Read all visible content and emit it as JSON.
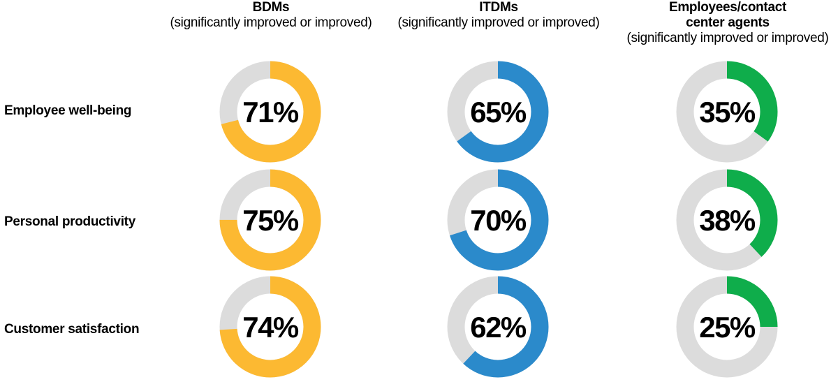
{
  "chart_data": {
    "type": "donut-grid",
    "columns": [
      {
        "title": "BDMs",
        "subtitle": "(significantly improved or improved)",
        "color": "#fcb932"
      },
      {
        "title": "ITDMs",
        "subtitle": "(significantly improved or improved)",
        "color": "#2b8acb"
      },
      {
        "title": "Employees/contact\ncenter agents",
        "subtitle": "(significantly improved or improved)",
        "color": "#0fad4b"
      }
    ],
    "rows": [
      {
        "label": "Employee well-being",
        "values": [
          71,
          65,
          35
        ],
        "labels": [
          "71%",
          "65%",
          "35%"
        ]
      },
      {
        "label": "Personal productivity",
        "values": [
          75,
          70,
          38
        ],
        "labels": [
          "75%",
          "70%",
          "38%"
        ]
      },
      {
        "label": "Customer satisfaction",
        "values": [
          74,
          62,
          25
        ],
        "labels": [
          "74%",
          "62%",
          "25%"
        ]
      }
    ],
    "track_color": "#dcdcdc",
    "value_range": [
      0,
      100
    ]
  }
}
